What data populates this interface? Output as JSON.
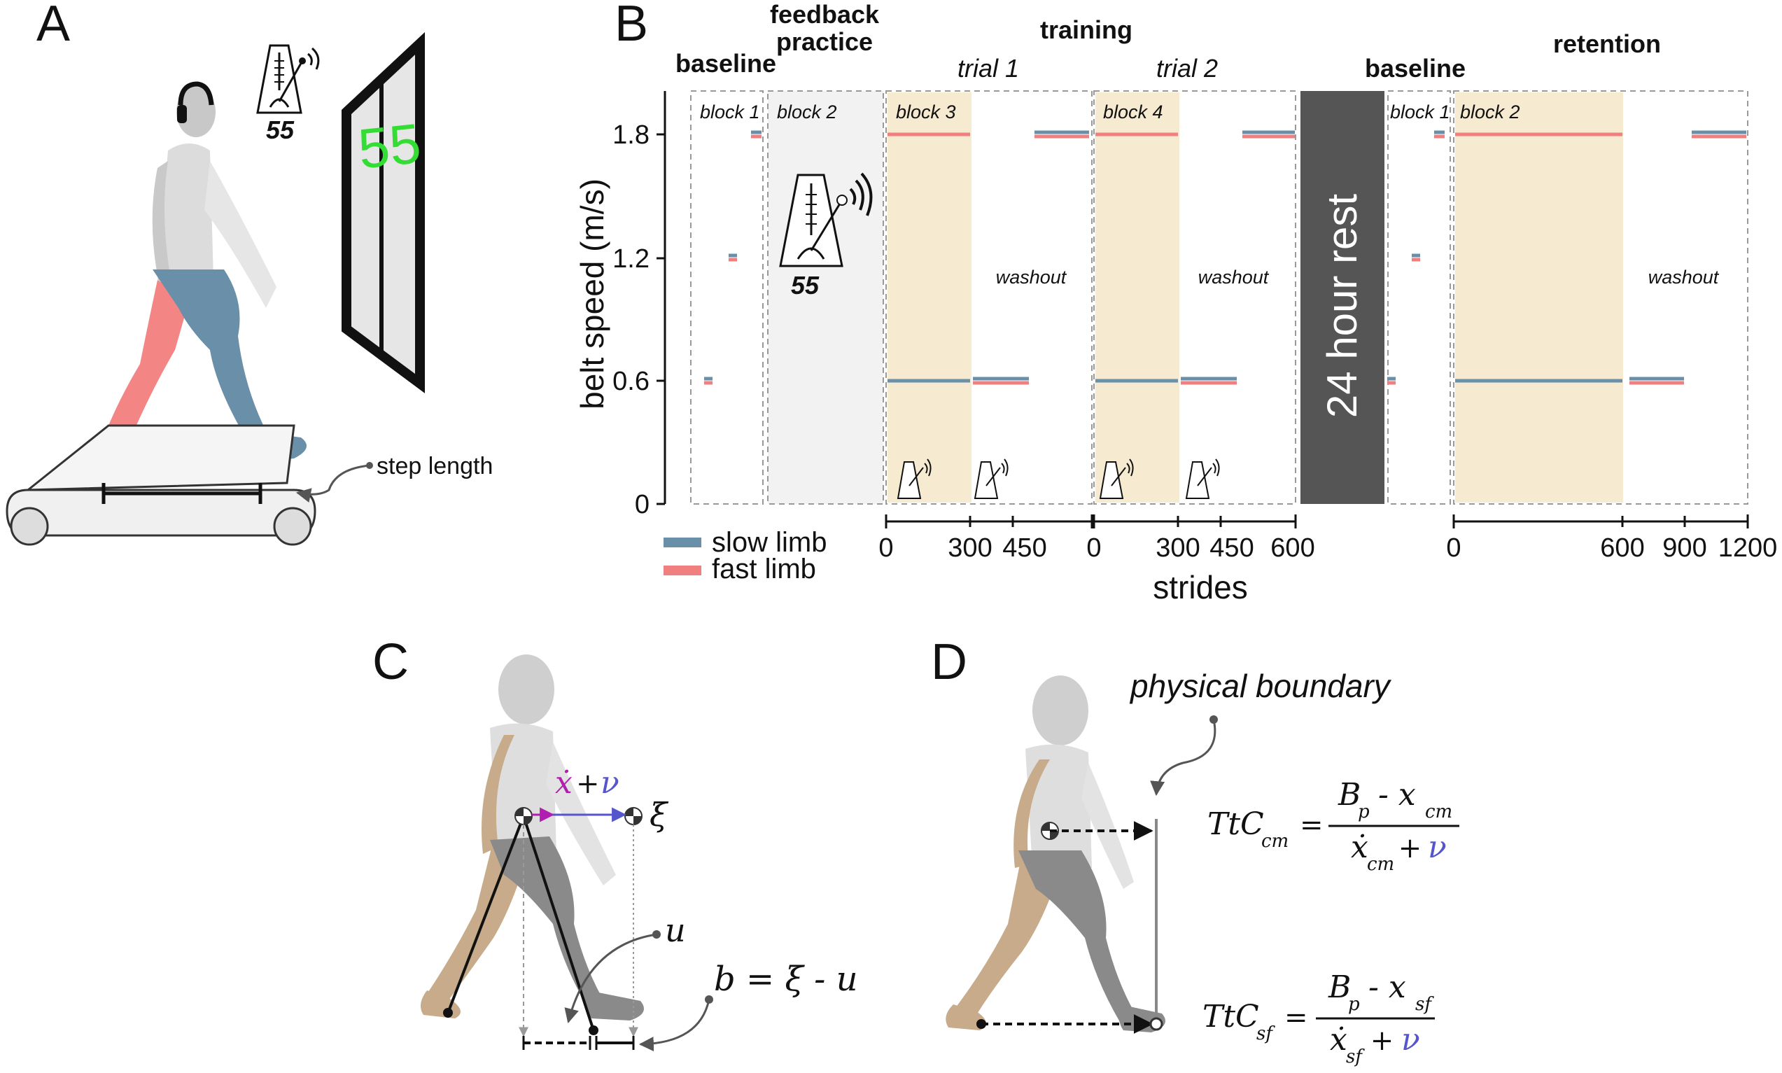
{
  "panels": {
    "a": "A",
    "b": "B",
    "c": "C",
    "d": "D"
  },
  "panel_a": {
    "metronome_number": "55",
    "screen_number": "55",
    "step_length_label": "step length"
  },
  "panel_b": {
    "headers": {
      "baseline1": "baseline",
      "feedback": [
        "feedback",
        "practice"
      ],
      "training": "training",
      "trial1": "trial 1",
      "trial2": "trial 2",
      "baseline2": "baseline",
      "retention": "retention"
    },
    "blocks": [
      "block 1",
      "block 2",
      "block 3",
      "block 4",
      "block 1",
      "block 2"
    ],
    "rest_label": "24 hour rest",
    "washout_label": "washout",
    "metronome_number": "55",
    "y_axis": {
      "label": "belt speed (m/s)",
      "ticks": [
        "1.8",
        "1.2",
        "0.6",
        "0"
      ]
    },
    "x_axis": {
      "label": "strides",
      "training_ticks_1": [
        "0",
        "300",
        "450"
      ],
      "training_ticks_2": [
        "0",
        "300",
        "450",
        "600"
      ],
      "retention_ticks": [
        "0",
        "600",
        "900",
        "1200"
      ]
    },
    "legend": [
      {
        "label": "slow limb",
        "color": "#6a8fa8"
      },
      {
        "label": "fast limb",
        "color": "#f08080"
      }
    ],
    "colors": {
      "feedback_shade": "#f2f2f2",
      "metronome_shade": "#f6ead0",
      "rest_box": "#555555"
    }
  },
  "panel_c": {
    "xdot": "ẋ",
    "plus": "+",
    "nu": "ν",
    "xi": "ξ",
    "u": "u",
    "b_eq": "b = ξ - u"
  },
  "panel_d": {
    "physical_boundary": "physical boundary",
    "ttc_cm": {
      "lhs": "TtC",
      "lhs_sub": "cm",
      "num": "B",
      "num_sub": "p",
      "num_rest": " - x",
      "num_rest_sub": "cm",
      "den": "ẋ",
      "den_sub": "cm",
      "den_plus": " + ",
      "den_nu": "ν"
    },
    "ttc_sf": {
      "lhs": "TtC",
      "lhs_sub": "sf",
      "num": "B",
      "num_sub": "p",
      "num_rest": " - x",
      "num_rest_sub": "sf",
      "den": "ẋ",
      "den_sub": "sf",
      "den_plus": " + ",
      "den_nu": "ν"
    },
    "eq_sign": "="
  },
  "chart_data": {
    "type": "line",
    "title": "",
    "xlabel": "strides",
    "ylabel": "belt speed (m/s)",
    "ylim": [
      0,
      1.8
    ],
    "segments": [
      {
        "phase": "baseline block 1",
        "slow": [
          0.6,
          1.2,
          1.8
        ],
        "fast": [
          0.6,
          1.2,
          1.8
        ]
      },
      {
        "phase": "training block 3 (trial 1)",
        "x": [
          0,
          300
        ],
        "slow": 0.6,
        "fast": 1.8
      },
      {
        "phase": "washout trial 1",
        "x": [
          300,
          450
        ],
        "slow": 0.6,
        "fast": 0.6
      },
      {
        "phase": "washout trial 1 (end)",
        "slow": 1.8,
        "fast": 1.8
      },
      {
        "phase": "training block 4 (trial 2)",
        "x": [
          0,
          300
        ],
        "slow": 0.6,
        "fast": 1.8
      },
      {
        "phase": "washout trial 2",
        "x": [
          300,
          450
        ],
        "slow": 0.6,
        "fast": 0.6
      },
      {
        "phase": "washout trial 2 (end)",
        "x": [
          450,
          600
        ],
        "slow": 1.8,
        "fast": 1.8
      },
      {
        "phase": "retention block 2",
        "x": [
          0,
          600
        ],
        "slow": 0.6,
        "fast": 1.8
      },
      {
        "phase": "washout retention",
        "x": [
          600,
          900
        ],
        "slow": 0.6,
        "fast": 0.6
      },
      {
        "phase": "washout retention (end)",
        "x": [
          900,
          1200
        ],
        "slow": 1.8,
        "fast": 1.8
      }
    ]
  }
}
